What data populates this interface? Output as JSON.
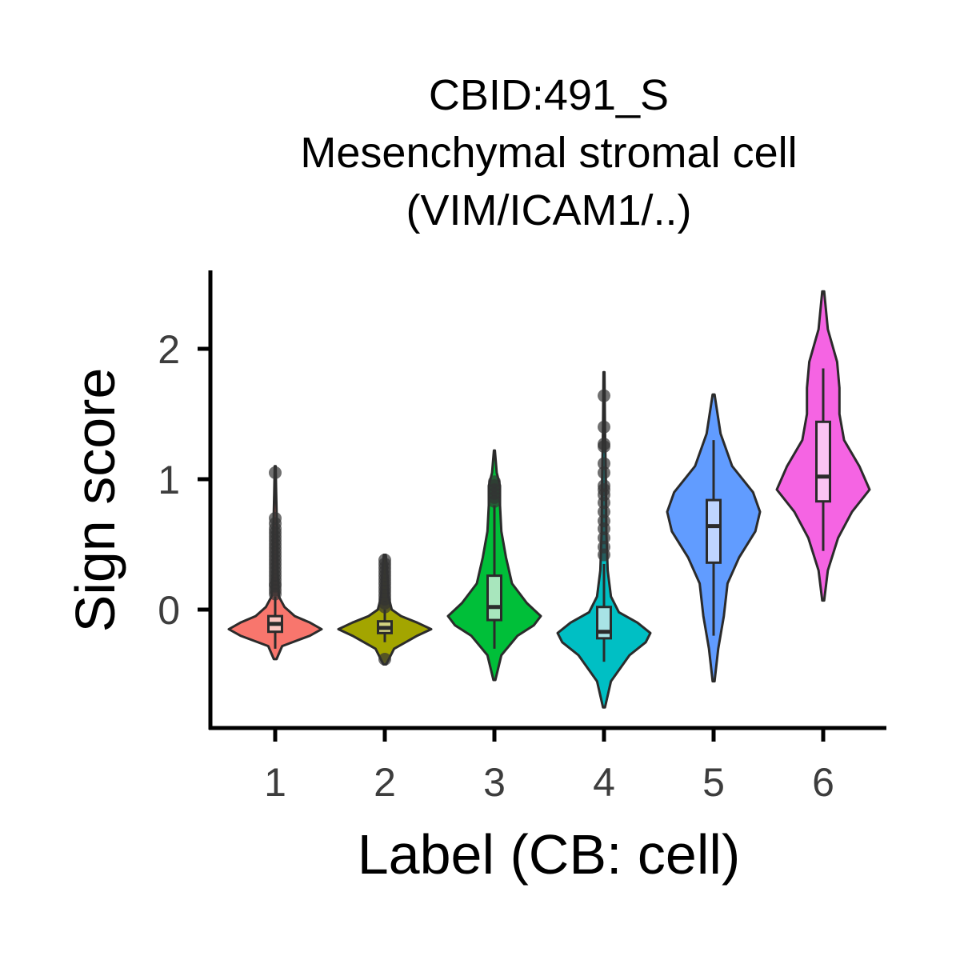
{
  "chart_data": {
    "type": "violin",
    "title_lines": [
      "CBID:491_S",
      "Mesenchymal stromal cell",
      "(VIM/ICAM1/..)"
    ],
    "xlabel": "Label (CB: cell)",
    "ylabel": "Sign score",
    "categories": [
      "1",
      "2",
      "3",
      "4",
      "5",
      "6"
    ],
    "y_ticks": [
      0,
      1,
      2
    ],
    "y_tick_labels": [
      "0",
      "1",
      "2"
    ],
    "ylim": [
      -0.9,
      2.6
    ],
    "grid": false,
    "legend": "none",
    "groups": [
      {
        "label": "1",
        "color": "#f8766d",
        "box_color": "#fcc7c2",
        "min": -0.38,
        "q1": -0.17,
        "median": -0.11,
        "q3": -0.05,
        "max": 1.1,
        "whisker_low": -0.3,
        "whisker_high": 0.1,
        "outliers": [
          0.12,
          0.15,
          0.18,
          0.2,
          0.23,
          0.26,
          0.29,
          0.32,
          0.35,
          0.38,
          0.41,
          0.44,
          0.47,
          0.5,
          0.53,
          0.56,
          0.59,
          0.62,
          0.66,
          0.7,
          1.05
        ],
        "density": [
          [
            -0.38,
            0.03
          ],
          [
            -0.28,
            0.15
          ],
          [
            -0.2,
            0.75
          ],
          [
            -0.15,
            1.0
          ],
          [
            -0.1,
            0.75
          ],
          [
            -0.05,
            0.42
          ],
          [
            0.02,
            0.2
          ],
          [
            0.1,
            0.08
          ],
          [
            0.3,
            0.05
          ],
          [
            0.6,
            0.04
          ],
          [
            0.9,
            0.02
          ],
          [
            1.1,
            0.01
          ]
        ]
      },
      {
        "label": "2",
        "color": "#a3a500",
        "box_color": "#d3d280",
        "min": -0.42,
        "q1": -0.18,
        "median": -0.14,
        "q3": -0.09,
        "max": 0.42,
        "whisker_low": -0.25,
        "whisker_high": 0.0,
        "outliers": [
          -0.38,
          0.02,
          0.05,
          0.08,
          0.11,
          0.14,
          0.17,
          0.2,
          0.23,
          0.26,
          0.29,
          0.32,
          0.35,
          0.38
        ],
        "density": [
          [
            -0.42,
            0.03
          ],
          [
            -0.3,
            0.2
          ],
          [
            -0.2,
            0.7
          ],
          [
            -0.15,
            1.0
          ],
          [
            -0.1,
            0.7
          ],
          [
            -0.05,
            0.35
          ],
          [
            0.0,
            0.15
          ],
          [
            0.1,
            0.08
          ],
          [
            0.25,
            0.06
          ],
          [
            0.42,
            0.02
          ]
        ]
      },
      {
        "label": "3",
        "color": "#00bf39",
        "box_color": "#a8e6bd",
        "min": -0.54,
        "q1": -0.08,
        "median": 0.02,
        "q3": 0.26,
        "max": 1.22,
        "whisker_low": -0.3,
        "whisker_high": 0.8,
        "outliers": [
          0.83,
          0.86,
          0.89,
          0.92,
          0.95,
          0.98
        ],
        "density": [
          [
            -0.54,
            0.02
          ],
          [
            -0.35,
            0.15
          ],
          [
            -0.2,
            0.5
          ],
          [
            -0.12,
            0.85
          ],
          [
            -0.05,
            1.0
          ],
          [
            0.05,
            0.7
          ],
          [
            0.2,
            0.38
          ],
          [
            0.4,
            0.25
          ],
          [
            0.6,
            0.15
          ],
          [
            0.8,
            0.12
          ],
          [
            0.95,
            0.12
          ],
          [
            1.05,
            0.05
          ],
          [
            1.22,
            0.01
          ]
        ]
      },
      {
        "label": "4",
        "color": "#00bfc4",
        "box_color": "#a8e3e6",
        "min": -0.75,
        "q1": -0.22,
        "median": -0.17,
        "q3": 0.02,
        "max": 1.82,
        "whisker_low": -0.4,
        "whisker_high": 0.35,
        "outliers": [
          0.42,
          0.48,
          0.55,
          0.62,
          0.68,
          0.75,
          0.82,
          0.88,
          0.92,
          0.95,
          1.05,
          1.12,
          1.25,
          1.27,
          1.4,
          1.64
        ],
        "density": [
          [
            -0.75,
            0.02
          ],
          [
            -0.55,
            0.15
          ],
          [
            -0.35,
            0.55
          ],
          [
            -0.25,
            0.9
          ],
          [
            -0.18,
            1.0
          ],
          [
            -0.1,
            0.72
          ],
          [
            -0.02,
            0.32
          ],
          [
            0.1,
            0.15
          ],
          [
            0.3,
            0.08
          ],
          [
            0.6,
            0.05
          ],
          [
            1.0,
            0.04
          ],
          [
            1.4,
            0.02
          ],
          [
            1.82,
            0.01
          ]
        ]
      },
      {
        "label": "5",
        "color": "#619cff",
        "box_color": "#bfd5ff",
        "min": -0.55,
        "q1": 0.36,
        "median": 0.64,
        "q3": 0.84,
        "max": 1.65,
        "whisker_low": -0.2,
        "whisker_high": 1.3,
        "outliers": [],
        "density": [
          [
            -0.55,
            0.02
          ],
          [
            -0.3,
            0.1
          ],
          [
            -0.05,
            0.22
          ],
          [
            0.2,
            0.3
          ],
          [
            0.4,
            0.55
          ],
          [
            0.6,
            0.9
          ],
          [
            0.75,
            1.0
          ],
          [
            0.9,
            0.85
          ],
          [
            1.1,
            0.4
          ],
          [
            1.35,
            0.15
          ],
          [
            1.65,
            0.02
          ]
        ]
      },
      {
        "label": "6",
        "color": "#f564e3",
        "box_color": "#fbc4f3",
        "min": 0.07,
        "q1": 0.83,
        "median": 1.02,
        "q3": 1.44,
        "max": 2.44,
        "whisker_low": 0.45,
        "whisker_high": 1.85,
        "outliers": [],
        "density": [
          [
            0.07,
            0.02
          ],
          [
            0.3,
            0.1
          ],
          [
            0.55,
            0.32
          ],
          [
            0.75,
            0.62
          ],
          [
            0.92,
            1.0
          ],
          [
            1.1,
            0.78
          ],
          [
            1.3,
            0.45
          ],
          [
            1.5,
            0.35
          ],
          [
            1.7,
            0.35
          ],
          [
            1.9,
            0.3
          ],
          [
            2.15,
            0.1
          ],
          [
            2.44,
            0.02
          ]
        ]
      }
    ]
  }
}
